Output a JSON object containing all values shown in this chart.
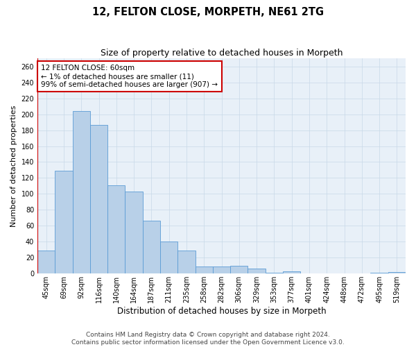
{
  "title": "12, FELTON CLOSE, MORPETH, NE61 2TG",
  "subtitle": "Size of property relative to detached houses in Morpeth",
  "xlabel": "Distribution of detached houses by size in Morpeth",
  "ylabel": "Number of detached properties",
  "categories": [
    "45sqm",
    "69sqm",
    "92sqm",
    "116sqm",
    "140sqm",
    "164sqm",
    "187sqm",
    "211sqm",
    "235sqm",
    "258sqm",
    "282sqm",
    "306sqm",
    "329sqm",
    "353sqm",
    "377sqm",
    "401sqm",
    "424sqm",
    "448sqm",
    "472sqm",
    "495sqm",
    "519sqm"
  ],
  "values": [
    29,
    129,
    204,
    187,
    111,
    103,
    66,
    40,
    29,
    9,
    9,
    10,
    6,
    1,
    3,
    0,
    0,
    0,
    0,
    1,
    2
  ],
  "bar_color": "#b8d0e8",
  "bar_edge_color": "#5b9bd5",
  "highlight_color": "#cc0000",
  "annotation_text": "12 FELTON CLOSE: 60sqm\n← 1% of detached houses are smaller (11)\n99% of semi-detached houses are larger (907) →",
  "annotation_box_color": "#ffffff",
  "annotation_box_edge_color": "#cc0000",
  "ylim": [
    0,
    270
  ],
  "yticks": [
    0,
    20,
    40,
    60,
    80,
    100,
    120,
    140,
    160,
    180,
    200,
    220,
    240,
    260
  ],
  "grid_color": "#c8d8e8",
  "bg_color": "#e8f0f8",
  "footer_line1": "Contains HM Land Registry data © Crown copyright and database right 2024.",
  "footer_line2": "Contains public sector information licensed under the Open Government Licence v3.0.",
  "title_fontsize": 10.5,
  "subtitle_fontsize": 9,
  "xlabel_fontsize": 8.5,
  "ylabel_fontsize": 8,
  "tick_fontsize": 7,
  "annotation_fontsize": 7.5,
  "footer_fontsize": 6.5
}
